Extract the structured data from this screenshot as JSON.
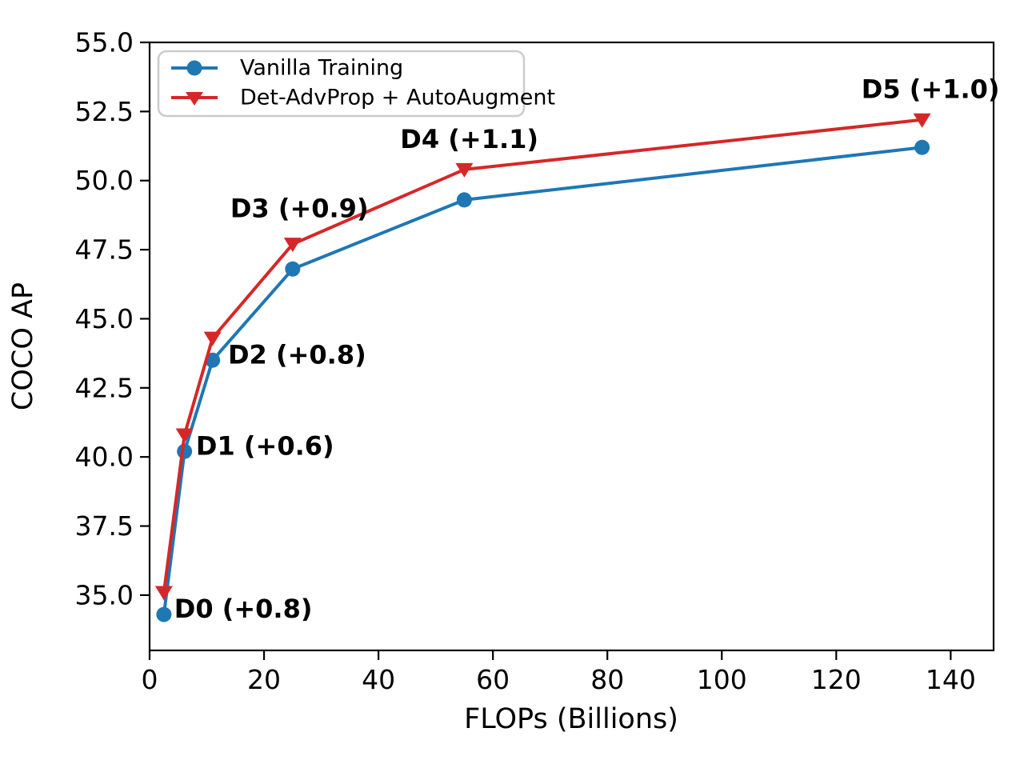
{
  "figure": {
    "background": "#ffffff",
    "axis_color": "#000000"
  },
  "chart_data": {
    "type": "line",
    "title": "",
    "xlabel": "FLOPs (Billions)",
    "ylabel": "COCO AP",
    "grid": false,
    "legend_position": "upper left",
    "xlim": [
      0,
      147.5
    ],
    "ylim": [
      33.0,
      55.0
    ],
    "x_ticks": [
      0,
      20,
      40,
      60,
      80,
      100,
      120,
      140
    ],
    "x_tick_labels": [
      "0",
      "20",
      "40",
      "60",
      "80",
      "100",
      "120",
      "140"
    ],
    "y_ticks": [
      35.0,
      37.5,
      40.0,
      42.5,
      45.0,
      47.5,
      50.0,
      52.5,
      55.0
    ],
    "y_tick_labels": [
      "35.0",
      "37.5",
      "40.0",
      "42.5",
      "45.0",
      "47.5",
      "50.0",
      "52.5",
      "55.0"
    ],
    "x": [
      2.5,
      6.1,
      11,
      25,
      55,
      135
    ],
    "series": [
      {
        "name": "Vanilla Training",
        "color": "#1f77b4",
        "marker": "circle",
        "values": [
          34.3,
          40.2,
          43.5,
          46.8,
          49.3,
          51.2
        ]
      },
      {
        "name": "Det-AdvProp + AutoAugment",
        "color": "#d62728",
        "marker": "triangle-down",
        "values": [
          35.1,
          40.8,
          44.3,
          47.7,
          50.4,
          52.2
        ]
      }
    ],
    "annotations": [
      {
        "label": "D0 (+0.8)",
        "x": 4.3,
        "y": 34.5
      },
      {
        "label": "D1 (+0.6)",
        "x": 8.1,
        "y": 40.4
      },
      {
        "label": "D2 (+0.8)",
        "x": 13.7,
        "y": 43.7
      },
      {
        "label": "D3 (+0.9)",
        "x": 14.1,
        "y": 49.0
      },
      {
        "label": "D4 (+1.1)",
        "x": 43.8,
        "y": 51.5
      },
      {
        "label": "D5 (+1.0)",
        "x": 124.4,
        "y": 53.3
      }
    ]
  }
}
